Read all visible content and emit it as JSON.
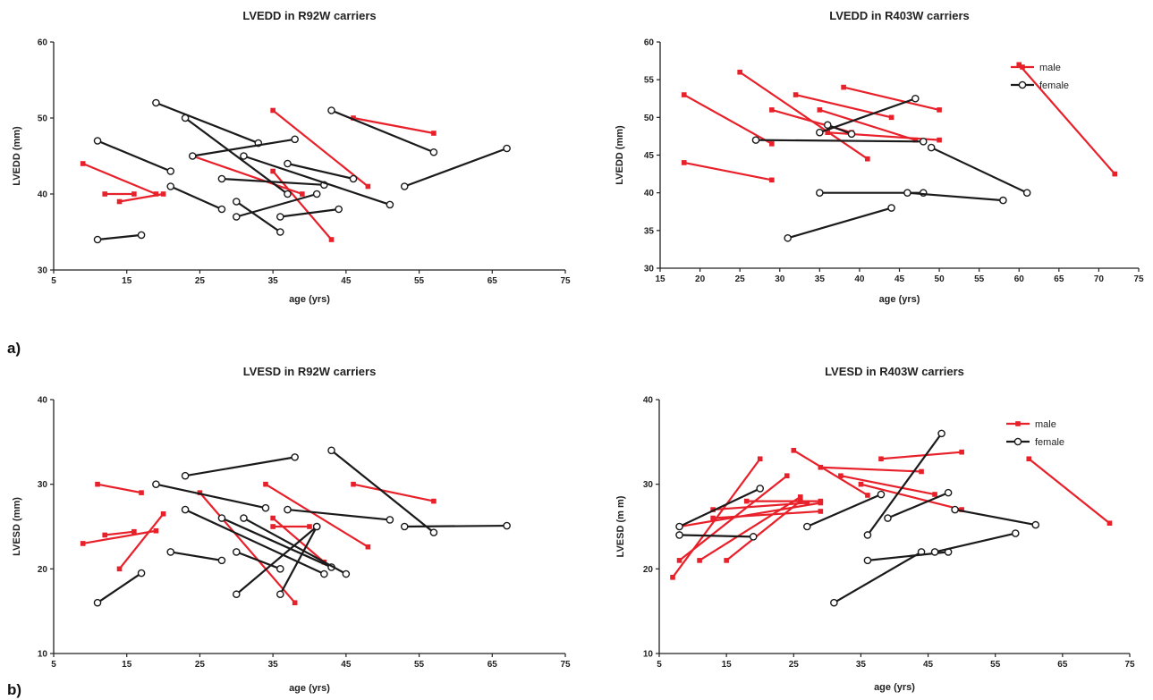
{
  "panel_labels": {
    "a": "a)",
    "b": "b)"
  },
  "colors": {
    "male": "#e8202a",
    "female": "#1a1a1a",
    "axis": "#222222"
  },
  "chart_data": [
    {
      "id": "lvedd-r92w",
      "type": "line",
      "title": "LVEDD in R92W carriers",
      "xlabel": "age (yrs)",
      "ylabel": "LVEDD (mm)",
      "xlim": [
        5,
        75
      ],
      "ylim": [
        30,
        60
      ],
      "xticks": [
        5,
        15,
        25,
        35,
        45,
        55,
        65,
        75
      ],
      "yticks": [
        30,
        40,
        50,
        60
      ],
      "grid": false,
      "legend": [],
      "series": [
        {
          "sex": "male",
          "points": [
            [
              9,
              44
            ],
            [
              19,
              40
            ]
          ]
        },
        {
          "sex": "male",
          "points": [
            [
              12,
              40
            ],
            [
              16,
              40
            ]
          ]
        },
        {
          "sex": "male",
          "points": [
            [
              14,
              39
            ],
            [
              20,
              40
            ]
          ]
        },
        {
          "sex": "male",
          "points": [
            [
              24,
              45
            ],
            [
              39,
              40
            ]
          ]
        },
        {
          "sex": "male",
          "points": [
            [
              35,
              51
            ],
            [
              48,
              41
            ]
          ]
        },
        {
          "sex": "male",
          "points": [
            [
              35,
              43
            ],
            [
              43,
              34
            ]
          ]
        },
        {
          "sex": "male",
          "points": [
            [
              46,
              50
            ],
            [
              57,
              48
            ]
          ]
        },
        {
          "sex": "female",
          "points": [
            [
              11,
              34
            ],
            [
              17,
              34.6
            ]
          ]
        },
        {
          "sex": "female",
          "points": [
            [
              11,
              47
            ],
            [
              21,
              43
            ]
          ]
        },
        {
          "sex": "female",
          "points": [
            [
              19,
              52
            ],
            [
              33,
              46.7
            ]
          ]
        },
        {
          "sex": "female",
          "points": [
            [
              21,
              41
            ],
            [
              28,
              38
            ]
          ]
        },
        {
          "sex": "female",
          "points": [
            [
              23,
              50
            ],
            [
              37,
              40
            ]
          ]
        },
        {
          "sex": "female",
          "points": [
            [
              24,
              45
            ],
            [
              38,
              47.2
            ]
          ]
        },
        {
          "sex": "female",
          "points": [
            [
              28,
              42
            ],
            [
              42,
              41.2
            ]
          ]
        },
        {
          "sex": "female",
          "points": [
            [
              30,
              39
            ],
            [
              36,
              35
            ]
          ]
        },
        {
          "sex": "female",
          "points": [
            [
              30,
              37
            ],
            [
              41,
              40
            ]
          ]
        },
        {
          "sex": "female",
          "points": [
            [
              31,
              45
            ],
            [
              51,
              38.6
            ]
          ]
        },
        {
          "sex": "female",
          "points": [
            [
              36,
              37
            ],
            [
              44,
              38
            ]
          ]
        },
        {
          "sex": "female",
          "points": [
            [
              37,
              44
            ],
            [
              46,
              42
            ]
          ]
        },
        {
          "sex": "female",
          "points": [
            [
              43,
              51
            ],
            [
              57,
              45.5
            ]
          ]
        },
        {
          "sex": "female",
          "points": [
            [
              53,
              41
            ],
            [
              67,
              46
            ]
          ]
        }
      ]
    },
    {
      "id": "lvedd-r403w",
      "type": "line",
      "title": "LVEDD in R403W carriers",
      "xlabel": "age (yrs)",
      "ylabel": "LVEDD (mm)",
      "xlim": [
        15,
        75
      ],
      "ylim": [
        30,
        60
      ],
      "xticks": [
        15,
        20,
        25,
        30,
        35,
        40,
        45,
        50,
        55,
        60,
        65,
        70,
        75
      ],
      "yticks": [
        30,
        35,
        40,
        45,
        50,
        55,
        60
      ],
      "grid": false,
      "legend": [
        {
          "sex": "male",
          "label": "male"
        },
        {
          "sex": "female",
          "label": "female"
        }
      ],
      "series": [
        {
          "sex": "male",
          "points": [
            [
              18,
              53
            ],
            [
              29,
              46.5
            ]
          ]
        },
        {
          "sex": "male",
          "points": [
            [
              18,
              44
            ],
            [
              29,
              41.7
            ]
          ]
        },
        {
          "sex": "male",
          "points": [
            [
              25,
              56
            ],
            [
              41,
              44.5
            ]
          ]
        },
        {
          "sex": "male",
          "points": [
            [
              29,
              51
            ],
            [
              39,
              48
            ]
          ]
        },
        {
          "sex": "male",
          "points": [
            [
              32,
              53
            ],
            [
              44,
              50
            ]
          ]
        },
        {
          "sex": "male",
          "points": [
            [
              35,
              51
            ],
            [
              47,
              47
            ]
          ]
        },
        {
          "sex": "male",
          "points": [
            [
              36,
              48
            ],
            [
              50,
              47
            ]
          ]
        },
        {
          "sex": "male",
          "points": [
            [
              38,
              54
            ],
            [
              50,
              51
            ]
          ]
        },
        {
          "sex": "male",
          "points": [
            [
              60,
              57
            ],
            [
              72,
              42.5
            ]
          ]
        },
        {
          "sex": "female",
          "points": [
            [
              27,
              47
            ],
            [
              48,
              46.8
            ]
          ]
        },
        {
          "sex": "female",
          "points": [
            [
              31,
              34
            ],
            [
              44,
              38
            ]
          ]
        },
        {
          "sex": "female",
          "points": [
            [
              35,
              48
            ],
            [
              47,
              52.5
            ]
          ]
        },
        {
          "sex": "female",
          "points": [
            [
              35,
              40
            ],
            [
              48,
              40
            ]
          ]
        },
        {
          "sex": "female",
          "points": [
            [
              36,
              49
            ],
            [
              39,
              47.8
            ]
          ]
        },
        {
          "sex": "female",
          "points": [
            [
              46,
              40
            ],
            [
              58,
              39
            ]
          ]
        },
        {
          "sex": "female",
          "points": [
            [
              49,
              46
            ],
            [
              61,
              40
            ]
          ]
        }
      ]
    },
    {
      "id": "lvesd-r92w",
      "type": "line",
      "title": "LVESD in R92W carriers",
      "xlabel": "age (yrs)",
      "ylabel": "LVESD (mm)",
      "xlim": [
        5,
        75
      ],
      "ylim": [
        10,
        40
      ],
      "xticks": [
        5,
        15,
        25,
        35,
        45,
        55,
        65,
        75
      ],
      "yticks": [
        10,
        20,
        30,
        40
      ],
      "grid": false,
      "legend": [],
      "series": [
        {
          "sex": "male",
          "points": [
            [
              9,
              23
            ],
            [
              19,
              24.5
            ]
          ]
        },
        {
          "sex": "male",
          "points": [
            [
              11,
              30
            ],
            [
              17,
              29
            ]
          ]
        },
        {
          "sex": "male",
          "points": [
            [
              12,
              24
            ],
            [
              16,
              24.4
            ]
          ]
        },
        {
          "sex": "male",
          "points": [
            [
              14,
              20
            ],
            [
              20,
              26.5
            ]
          ]
        },
        {
          "sex": "male",
          "points": [
            [
              25,
              29
            ],
            [
              38,
              16
            ]
          ]
        },
        {
          "sex": "male",
          "points": [
            [
              34,
              30
            ],
            [
              48,
              22.6
            ]
          ]
        },
        {
          "sex": "male",
          "points": [
            [
              35,
              26
            ],
            [
              42,
              20.8
            ]
          ]
        },
        {
          "sex": "male",
          "points": [
            [
              35,
              25
            ],
            [
              40,
              25
            ]
          ]
        },
        {
          "sex": "male",
          "points": [
            [
              46,
              30
            ],
            [
              57,
              28
            ]
          ]
        },
        {
          "sex": "female",
          "points": [
            [
              11,
              16
            ],
            [
              17,
              19.5
            ]
          ]
        },
        {
          "sex": "female",
          "points": [
            [
              19,
              30
            ],
            [
              34,
              27.2
            ]
          ]
        },
        {
          "sex": "female",
          "points": [
            [
              21,
              22
            ],
            [
              28,
              21
            ]
          ]
        },
        {
          "sex": "female",
          "points": [
            [
              23,
              31
            ],
            [
              38,
              33.2
            ]
          ]
        },
        {
          "sex": "female",
          "points": [
            [
              23,
              27
            ],
            [
              42,
              19.4
            ]
          ]
        },
        {
          "sex": "female",
          "points": [
            [
              28,
              26
            ],
            [
              43,
              20.2
            ]
          ]
        },
        {
          "sex": "female",
          "points": [
            [
              30,
              22
            ],
            [
              36,
              20
            ]
          ]
        },
        {
          "sex": "female",
          "points": [
            [
              30,
              17
            ],
            [
              41,
              25
            ]
          ]
        },
        {
          "sex": "female",
          "points": [
            [
              31,
              26
            ],
            [
              45,
              19.4
            ]
          ]
        },
        {
          "sex": "female",
          "points": [
            [
              36,
              17
            ],
            [
              41,
              25
            ]
          ]
        },
        {
          "sex": "female",
          "points": [
            [
              37,
              27
            ],
            [
              51,
              25.8
            ]
          ]
        },
        {
          "sex": "female",
          "points": [
            [
              43,
              34
            ],
            [
              57,
              24.3
            ]
          ]
        },
        {
          "sex": "female",
          "points": [
            [
              53,
              25
            ],
            [
              67,
              25.1
            ]
          ]
        }
      ]
    },
    {
      "id": "lvesd-r403w",
      "type": "line",
      "title": "LVESD in  R403W carriers",
      "xlabel": "age (yrs)",
      "ylabel": "LVESD (m m)",
      "xlim": [
        5,
        75
      ],
      "ylim": [
        10,
        40
      ],
      "xticks": [
        5,
        15,
        25,
        35,
        45,
        55,
        65,
        75
      ],
      "yticks": [
        10,
        20,
        30,
        40
      ],
      "grid": false,
      "legend": [
        {
          "sex": "male",
          "label": "male"
        },
        {
          "sex": "female",
          "label": "female"
        }
      ],
      "series": [
        {
          "sex": "male",
          "points": [
            [
              7,
              19
            ],
            [
              20,
              33
            ]
          ]
        },
        {
          "sex": "male",
          "points": [
            [
              8,
              25
            ],
            [
              29,
              27.8
            ]
          ]
        },
        {
          "sex": "male",
          "points": [
            [
              8,
              21
            ],
            [
              24,
              31
            ]
          ]
        },
        {
          "sex": "male",
          "points": [
            [
              11,
              21
            ],
            [
              26,
              28.5
            ]
          ]
        },
        {
          "sex": "male",
          "points": [
            [
              13,
              26
            ],
            [
              29,
              26.8
            ]
          ]
        },
        {
          "sex": "male",
          "points": [
            [
              13,
              27
            ],
            [
              27,
              27.8
            ]
          ]
        },
        {
          "sex": "male",
          "points": [
            [
              15,
              21
            ],
            [
              26,
              28
            ]
          ]
        },
        {
          "sex": "male",
          "points": [
            [
              18,
              28
            ],
            [
              29,
              28
            ]
          ]
        },
        {
          "sex": "male",
          "points": [
            [
              25,
              34
            ],
            [
              36,
              28.7
            ]
          ]
        },
        {
          "sex": "male",
          "points": [
            [
              29,
              32
            ],
            [
              44,
              31.5
            ]
          ]
        },
        {
          "sex": "male",
          "points": [
            [
              32,
              31
            ],
            [
              46,
              28.8
            ]
          ]
        },
        {
          "sex": "male",
          "points": [
            [
              35,
              30
            ],
            [
              50,
              27
            ]
          ]
        },
        {
          "sex": "male",
          "points": [
            [
              38,
              33
            ],
            [
              50,
              33.8
            ]
          ]
        },
        {
          "sex": "male",
          "points": [
            [
              60,
              33
            ],
            [
              72,
              25.4
            ]
          ]
        },
        {
          "sex": "female",
          "points": [
            [
              8,
              25
            ],
            [
              20,
              29.5
            ]
          ]
        },
        {
          "sex": "female",
          "points": [
            [
              8,
              24
            ],
            [
              19,
              23.8
            ]
          ]
        },
        {
          "sex": "female",
          "points": [
            [
              27,
              25
            ],
            [
              38,
              28.8
            ]
          ]
        },
        {
          "sex": "female",
          "points": [
            [
              31,
              16
            ],
            [
              44,
              22
            ]
          ]
        },
        {
          "sex": "female",
          "points": [
            [
              36,
              24
            ],
            [
              47,
              36
            ]
          ]
        },
        {
          "sex": "female",
          "points": [
            [
              36,
              21
            ],
            [
              48,
              22
            ]
          ]
        },
        {
          "sex": "female",
          "points": [
            [
              39,
              26
            ],
            [
              48,
              29
            ]
          ]
        },
        {
          "sex": "female",
          "points": [
            [
              46,
              22
            ],
            [
              58,
              24.2
            ]
          ]
        },
        {
          "sex": "female",
          "points": [
            [
              49,
              27
            ],
            [
              61,
              25.2
            ]
          ]
        }
      ]
    }
  ]
}
